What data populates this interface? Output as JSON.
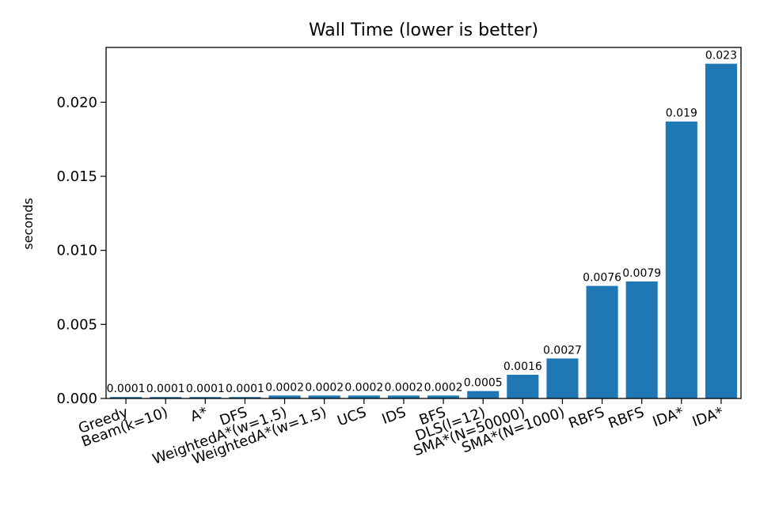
{
  "chart_data": {
    "type": "bar",
    "title": "Wall Time (lower is better)",
    "xlabel": "",
    "ylabel": "seconds",
    "ylim": [
      0,
      0.0237
    ],
    "yticks": [
      0.0,
      0.005,
      0.01,
      0.015,
      0.02
    ],
    "ytick_labels": [
      "0.000",
      "0.005",
      "0.010",
      "0.015",
      "0.020"
    ],
    "categories": [
      "Greedy",
      "Beam(k=10)",
      "A*",
      "DFS",
      "WeightedA*(w=1.5)",
      "WeightedA*(w=1.5)",
      "UCS",
      "IDS",
      "BFS",
      "DLS(l=12)",
      "SMA*(N=50000)",
      "SMA*(N=1000)",
      "RBFS",
      "RBFS",
      "IDA*",
      "IDA*"
    ],
    "values": [
      0.0001,
      0.0001,
      0.0001,
      0.0001,
      0.0002,
      0.0002,
      0.0002,
      0.0002,
      0.0002,
      0.0005,
      0.0016,
      0.0027,
      0.0076,
      0.0079,
      0.0187,
      0.0226
    ],
    "value_labels": [
      "0.0001",
      "0.0001",
      "0.0001",
      "0.0001",
      "0.0002",
      "0.0002",
      "0.0002",
      "0.0002",
      "0.0002",
      "0.0005",
      "0.0016",
      "0.0027",
      "0.0076",
      "0.0079",
      "0.019",
      "0.023"
    ],
    "bar_color": "#1f77b4",
    "grid": false,
    "legend": "none"
  }
}
